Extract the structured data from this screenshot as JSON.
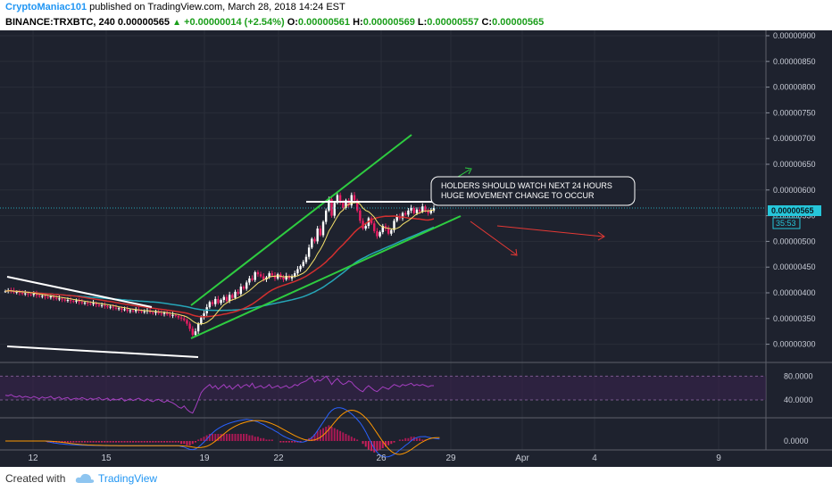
{
  "header": {
    "author": "CryptoManiac101",
    "published_text": "published on TradingView.com, March 28, 2018 14:24 EST",
    "symbol": "BINANCE:TRXBTC, 240",
    "price": "0.00000565",
    "change": "+0.00000014 (+2.54%)",
    "o_label": "O:",
    "o_value": "0.00000561",
    "h_label": "H:",
    "h_value": "0.00000569",
    "l_label": "L:",
    "l_value": "0.00000557",
    "c_label": "C:",
    "c_value": "0.00000565"
  },
  "footer": {
    "created_with": "Created with",
    "brand": "TradingView"
  },
  "colors": {
    "background": "#1e222e",
    "grid": "#2a2e39",
    "up_candle": "#ffffff",
    "down_candle": "#e91e63",
    "trend_green": "#2ecc40",
    "ma_yellow": "#f5e16b",
    "ma_red": "#d32f2f",
    "ma_cyan": "#26a6b8",
    "rsi": "#a53fc1",
    "macd": "#2962ff",
    "signal": "#ff9800",
    "current_price": "#26c6da"
  },
  "chart_data": [
    {
      "type": "candlestick",
      "x_ticks": [
        "12",
        "15",
        "19",
        "22",
        "26",
        "29",
        "Apr",
        "4",
        "9"
      ],
      "y_ticks": [
        "0.00000900",
        "0.00000850",
        "0.00000800",
        "0.00000750",
        "0.00000700",
        "0.00000650",
        "0.00000600",
        "0.00000550",
        "0.00000500",
        "0.00000450",
        "0.00000400",
        "0.00000350",
        "0.00000300"
      ],
      "ylim": [
        2.8e-06,
        9.3e-06
      ],
      "current_price_label": "0.00000565",
      "countdown_label": "35:53",
      "annotation_line1": "HOLDERS SHOULD WATCH NEXT 24 HOURS",
      "annotation_line2": "HUGE MOVEMENT CHANGE TO OCCUR",
      "close": [
        403,
        405,
        404,
        401,
        402,
        400,
        398,
        399,
        397,
        396,
        398,
        395,
        393,
        394,
        392,
        391,
        393,
        390,
        388,
        389,
        387,
        385,
        386,
        384,
        383,
        385,
        382,
        380,
        381,
        379,
        378,
        380,
        377,
        375,
        376,
        374,
        372,
        373,
        371,
        369,
        370,
        367,
        368,
        365,
        366,
        364,
        367,
        365,
        363,
        364,
        366,
        362,
        361,
        363,
        360,
        359,
        361,
        358,
        356,
        357,
        355,
        352,
        350,
        347,
        340,
        330,
        318,
        325,
        340,
        352,
        360,
        372,
        382,
        378,
        388,
        380,
        386,
        392,
        384,
        396,
        390,
        402,
        398,
        412,
        408,
        420,
        428,
        425,
        440,
        436,
        432,
        426,
        430,
        438,
        434,
        428,
        436,
        430,
        426,
        433,
        428,
        432,
        438,
        446,
        452,
        460,
        470,
        488,
        505,
        500,
        525,
        512,
        538,
        560,
        582,
        550,
        575,
        590,
        575,
        565,
        580,
        570,
        590,
        580,
        560,
        540,
        525,
        530,
        545,
        535,
        520,
        510,
        518,
        530,
        525,
        515,
        522,
        540,
        548,
        545,
        555,
        552,
        560,
        565,
        555,
        562,
        558,
        568,
        560,
        555,
        560,
        565
      ]
    },
    {
      "type": "line",
      "name": "RSI",
      "y_ticks": [
        "80.0000",
        "40.0000"
      ],
      "ylim": [
        10,
        100
      ],
      "values": [
        48,
        47,
        49,
        46,
        45,
        47,
        44,
        46,
        45,
        43,
        46,
        44,
        42,
        45,
        43,
        44,
        46,
        42,
        43,
        45,
        41,
        43,
        44,
        40,
        42,
        43,
        41,
        44,
        42,
        40,
        43,
        41,
        42,
        44,
        40,
        41,
        43,
        39,
        42,
        40,
        41,
        43,
        38,
        40,
        42,
        39,
        41,
        43,
        40,
        38,
        42,
        39,
        37,
        40,
        41,
        38,
        36,
        39,
        37,
        35,
        32,
        28,
        26,
        30,
        24,
        20,
        18,
        28,
        40,
        52,
        58,
        62,
        66,
        60,
        64,
        58,
        62,
        66,
        60,
        64,
        58,
        62,
        66,
        60,
        64,
        66,
        62,
        68,
        60,
        62,
        64,
        60,
        62,
        66,
        60,
        62,
        64,
        60,
        62,
        64,
        60,
        62,
        66,
        64,
        68,
        70,
        72,
        76,
        78,
        70,
        74,
        72,
        76,
        80,
        74,
        66,
        72,
        76,
        70,
        66,
        68,
        72,
        70,
        64,
        60,
        56,
        54,
        60,
        64,
        60,
        56,
        54,
        58,
        62,
        60,
        58,
        62,
        66,
        64,
        62,
        66,
        64,
        66,
        68,
        64,
        66,
        64,
        66,
        64,
        62,
        64,
        64
      ]
    },
    {
      "type": "bar",
      "name": "MACD",
      "y_ticks": [
        "0.0000"
      ],
      "histogram": [
        0,
        0,
        0,
        0,
        0,
        0,
        0,
        0,
        0,
        0,
        0,
        0,
        0,
        0,
        0,
        -1,
        -1,
        -1,
        -1,
        -1,
        -1,
        -1,
        -1,
        -1,
        -1,
        -1,
        -1,
        -1,
        -1,
        -1,
        -1,
        -1,
        -1,
        -1,
        -1,
        -1,
        -1,
        -1,
        -1,
        -1,
        -1,
        -1,
        -1,
        -1,
        -1,
        -1,
        -1,
        -1,
        -1,
        -1,
        -1,
        -1,
        -1,
        -1,
        -1,
        -1,
        -1,
        -1,
        -1,
        -1,
        -1,
        -1,
        -2,
        -2,
        -3,
        -3,
        -2,
        -1,
        1,
        2,
        3,
        4,
        5,
        5,
        5,
        5,
        5,
        5,
        5,
        5,
        5,
        5,
        5,
        5,
        5,
        5,
        4,
        4,
        3,
        3,
        2,
        2,
        1,
        1,
        1,
        0,
        0,
        -1,
        -1,
        -1,
        -1,
        -1,
        -1,
        -1,
        -1,
        0,
        1,
        2,
        3,
        5,
        7,
        8,
        9,
        10,
        11,
        10,
        9,
        8,
        7,
        6,
        5,
        4,
        3,
        2,
        1,
        0,
        -2,
        -4,
        -6,
        -7,
        -8,
        -7,
        -6,
        -5,
        -4,
        -3,
        -2,
        -1,
        0,
        1,
        1,
        2,
        2,
        3,
        3,
        2,
        2,
        1,
        1,
        0,
        0,
        0,
        0,
        0
      ]
    }
  ]
}
